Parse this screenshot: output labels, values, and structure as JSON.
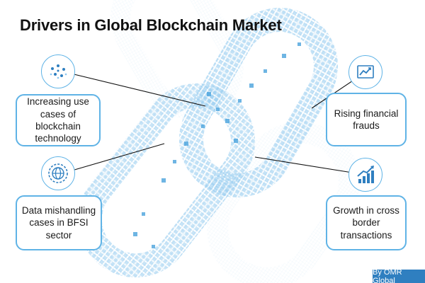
{
  "title": "Drivers in Global Blockchain Market",
  "drivers": [
    {
      "label": "Increasing use cases of blockchain technology",
      "icon": "network-nodes-icon"
    },
    {
      "label": "Data mishandling cases in BFSI sector",
      "icon": "globe-gear-icon"
    },
    {
      "label": "Rising financial frauds",
      "icon": "line-chart-icon"
    },
    {
      "label": "Growth in cross border transactions",
      "icon": "growth-arrow-icon"
    }
  ],
  "credit": "By OMR Global",
  "colors": {
    "accent": "#5fb3e6",
    "credit_bg": "#2f7fc0",
    "chain": "#6fb6e8"
  }
}
